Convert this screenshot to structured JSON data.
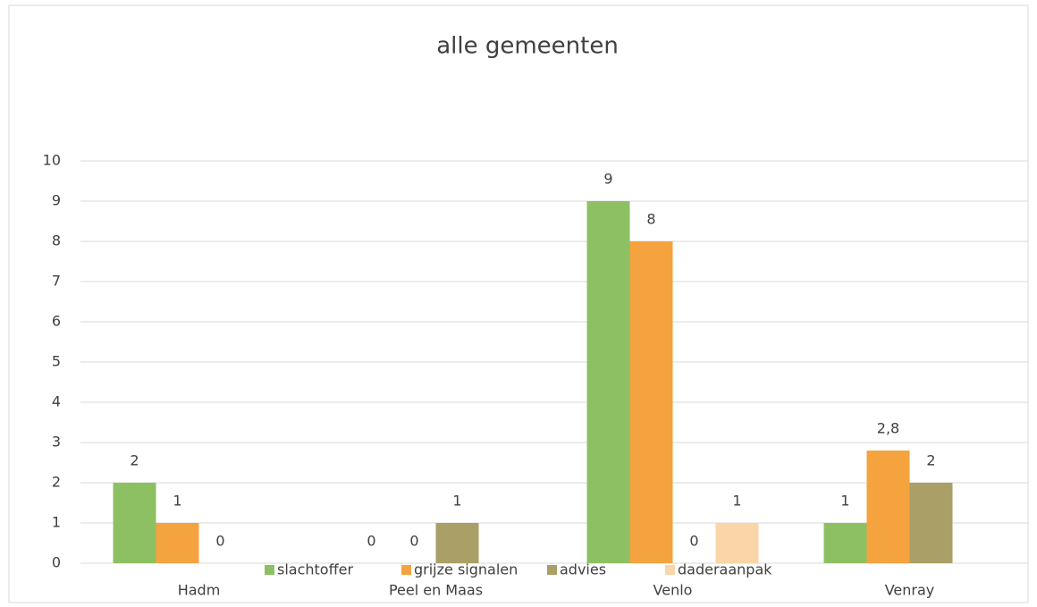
{
  "chart_data": {
    "type": "bar",
    "title": "alle gemeenten",
    "categories": [
      "Hadm",
      "Peel en Maas",
      "Venlo",
      "Venray"
    ],
    "series": [
      {
        "name": "slachtoffer",
        "color": "#8dc063",
        "values": [
          2,
          0,
          9,
          1
        ]
      },
      {
        "name": "grijze signalen",
        "color": "#f4a33f",
        "values": [
          1,
          0,
          8,
          2.8
        ],
        "value_labels": [
          "1",
          "0",
          "8",
          "2,8"
        ]
      },
      {
        "name": "advies",
        "color": "#aa9f66",
        "values": [
          0,
          1,
          0,
          2
        ]
      },
      {
        "name": "daderaanpak",
        "color": "#f9d5a8",
        "values": [
          null,
          null,
          1,
          null
        ]
      }
    ],
    "ylim": [
      0,
      10
    ],
    "yticks": [
      0,
      1,
      2,
      3,
      4,
      5,
      6,
      7,
      8,
      9,
      10
    ],
    "grid": true,
    "legend": "bottom"
  }
}
